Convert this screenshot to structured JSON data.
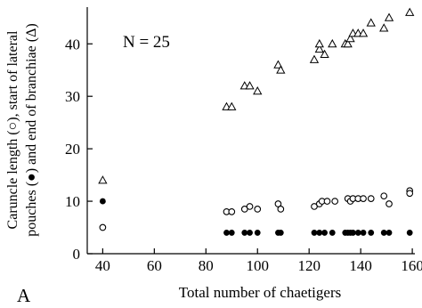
{
  "chart_data": {
    "type": "scatter",
    "annotation": "N = 25",
    "panel_label": "A",
    "xlabel": "Total number of chaetigers",
    "ylabel_line1": "Caruncle length (○), start of lateral",
    "ylabel_line2": "pouches (●) and end of branchiae (Δ)",
    "xlim": [
      34,
      161
    ],
    "ylim": [
      0,
      47
    ],
    "xticks": [
      40,
      60,
      80,
      100,
      120,
      140,
      160
    ],
    "yticks": [
      0,
      10,
      20,
      30,
      40
    ],
    "series": [
      {
        "marker": "triangle-open",
        "points": [
          [
            40,
            14
          ],
          [
            88,
            28
          ],
          [
            90,
            28
          ],
          [
            95,
            32
          ],
          [
            97,
            32
          ],
          [
            100,
            31
          ],
          [
            108,
            36
          ],
          [
            109,
            35
          ],
          [
            122,
            37
          ],
          [
            124,
            39
          ],
          [
            124,
            40
          ],
          [
            126,
            38
          ],
          [
            129,
            40
          ],
          [
            134,
            40
          ],
          [
            135,
            40
          ],
          [
            136,
            41
          ],
          [
            137,
            42
          ],
          [
            139,
            42
          ],
          [
            141,
            42
          ],
          [
            144,
            44
          ],
          [
            149,
            43
          ],
          [
            151,
            45
          ],
          [
            159,
            46
          ]
        ]
      },
      {
        "marker": "circle-open",
        "points": [
          [
            40,
            5
          ],
          [
            88,
            8
          ],
          [
            90,
            8
          ],
          [
            95,
            8.5
          ],
          [
            97,
            9
          ],
          [
            100,
            8.5
          ],
          [
            108,
            9.5
          ],
          [
            109,
            8.5
          ],
          [
            122,
            9
          ],
          [
            124,
            9.5
          ],
          [
            125,
            10
          ],
          [
            127,
            10
          ],
          [
            130,
            10
          ],
          [
            135,
            10.5
          ],
          [
            136,
            10
          ],
          [
            137,
            10.5
          ],
          [
            139,
            10.5
          ],
          [
            141,
            10.5
          ],
          [
            144,
            10.5
          ],
          [
            149,
            11
          ],
          [
            151,
            9.5
          ],
          [
            159,
            12
          ],
          [
            159,
            11.5
          ]
        ]
      },
      {
        "marker": "circle-filled",
        "points": [
          [
            40,
            10
          ],
          [
            88,
            4
          ],
          [
            90,
            4
          ],
          [
            95,
            4
          ],
          [
            97,
            4
          ],
          [
            100,
            4
          ],
          [
            108,
            4
          ],
          [
            109,
            4
          ],
          [
            122,
            4
          ],
          [
            124,
            4
          ],
          [
            126,
            4
          ],
          [
            129,
            4
          ],
          [
            134,
            4
          ],
          [
            135,
            4
          ],
          [
            136,
            4
          ],
          [
            137,
            4
          ],
          [
            139,
            4
          ],
          [
            141,
            4
          ],
          [
            144,
            4
          ],
          [
            149,
            4
          ],
          [
            151,
            4
          ],
          [
            159,
            4
          ]
        ]
      }
    ]
  }
}
